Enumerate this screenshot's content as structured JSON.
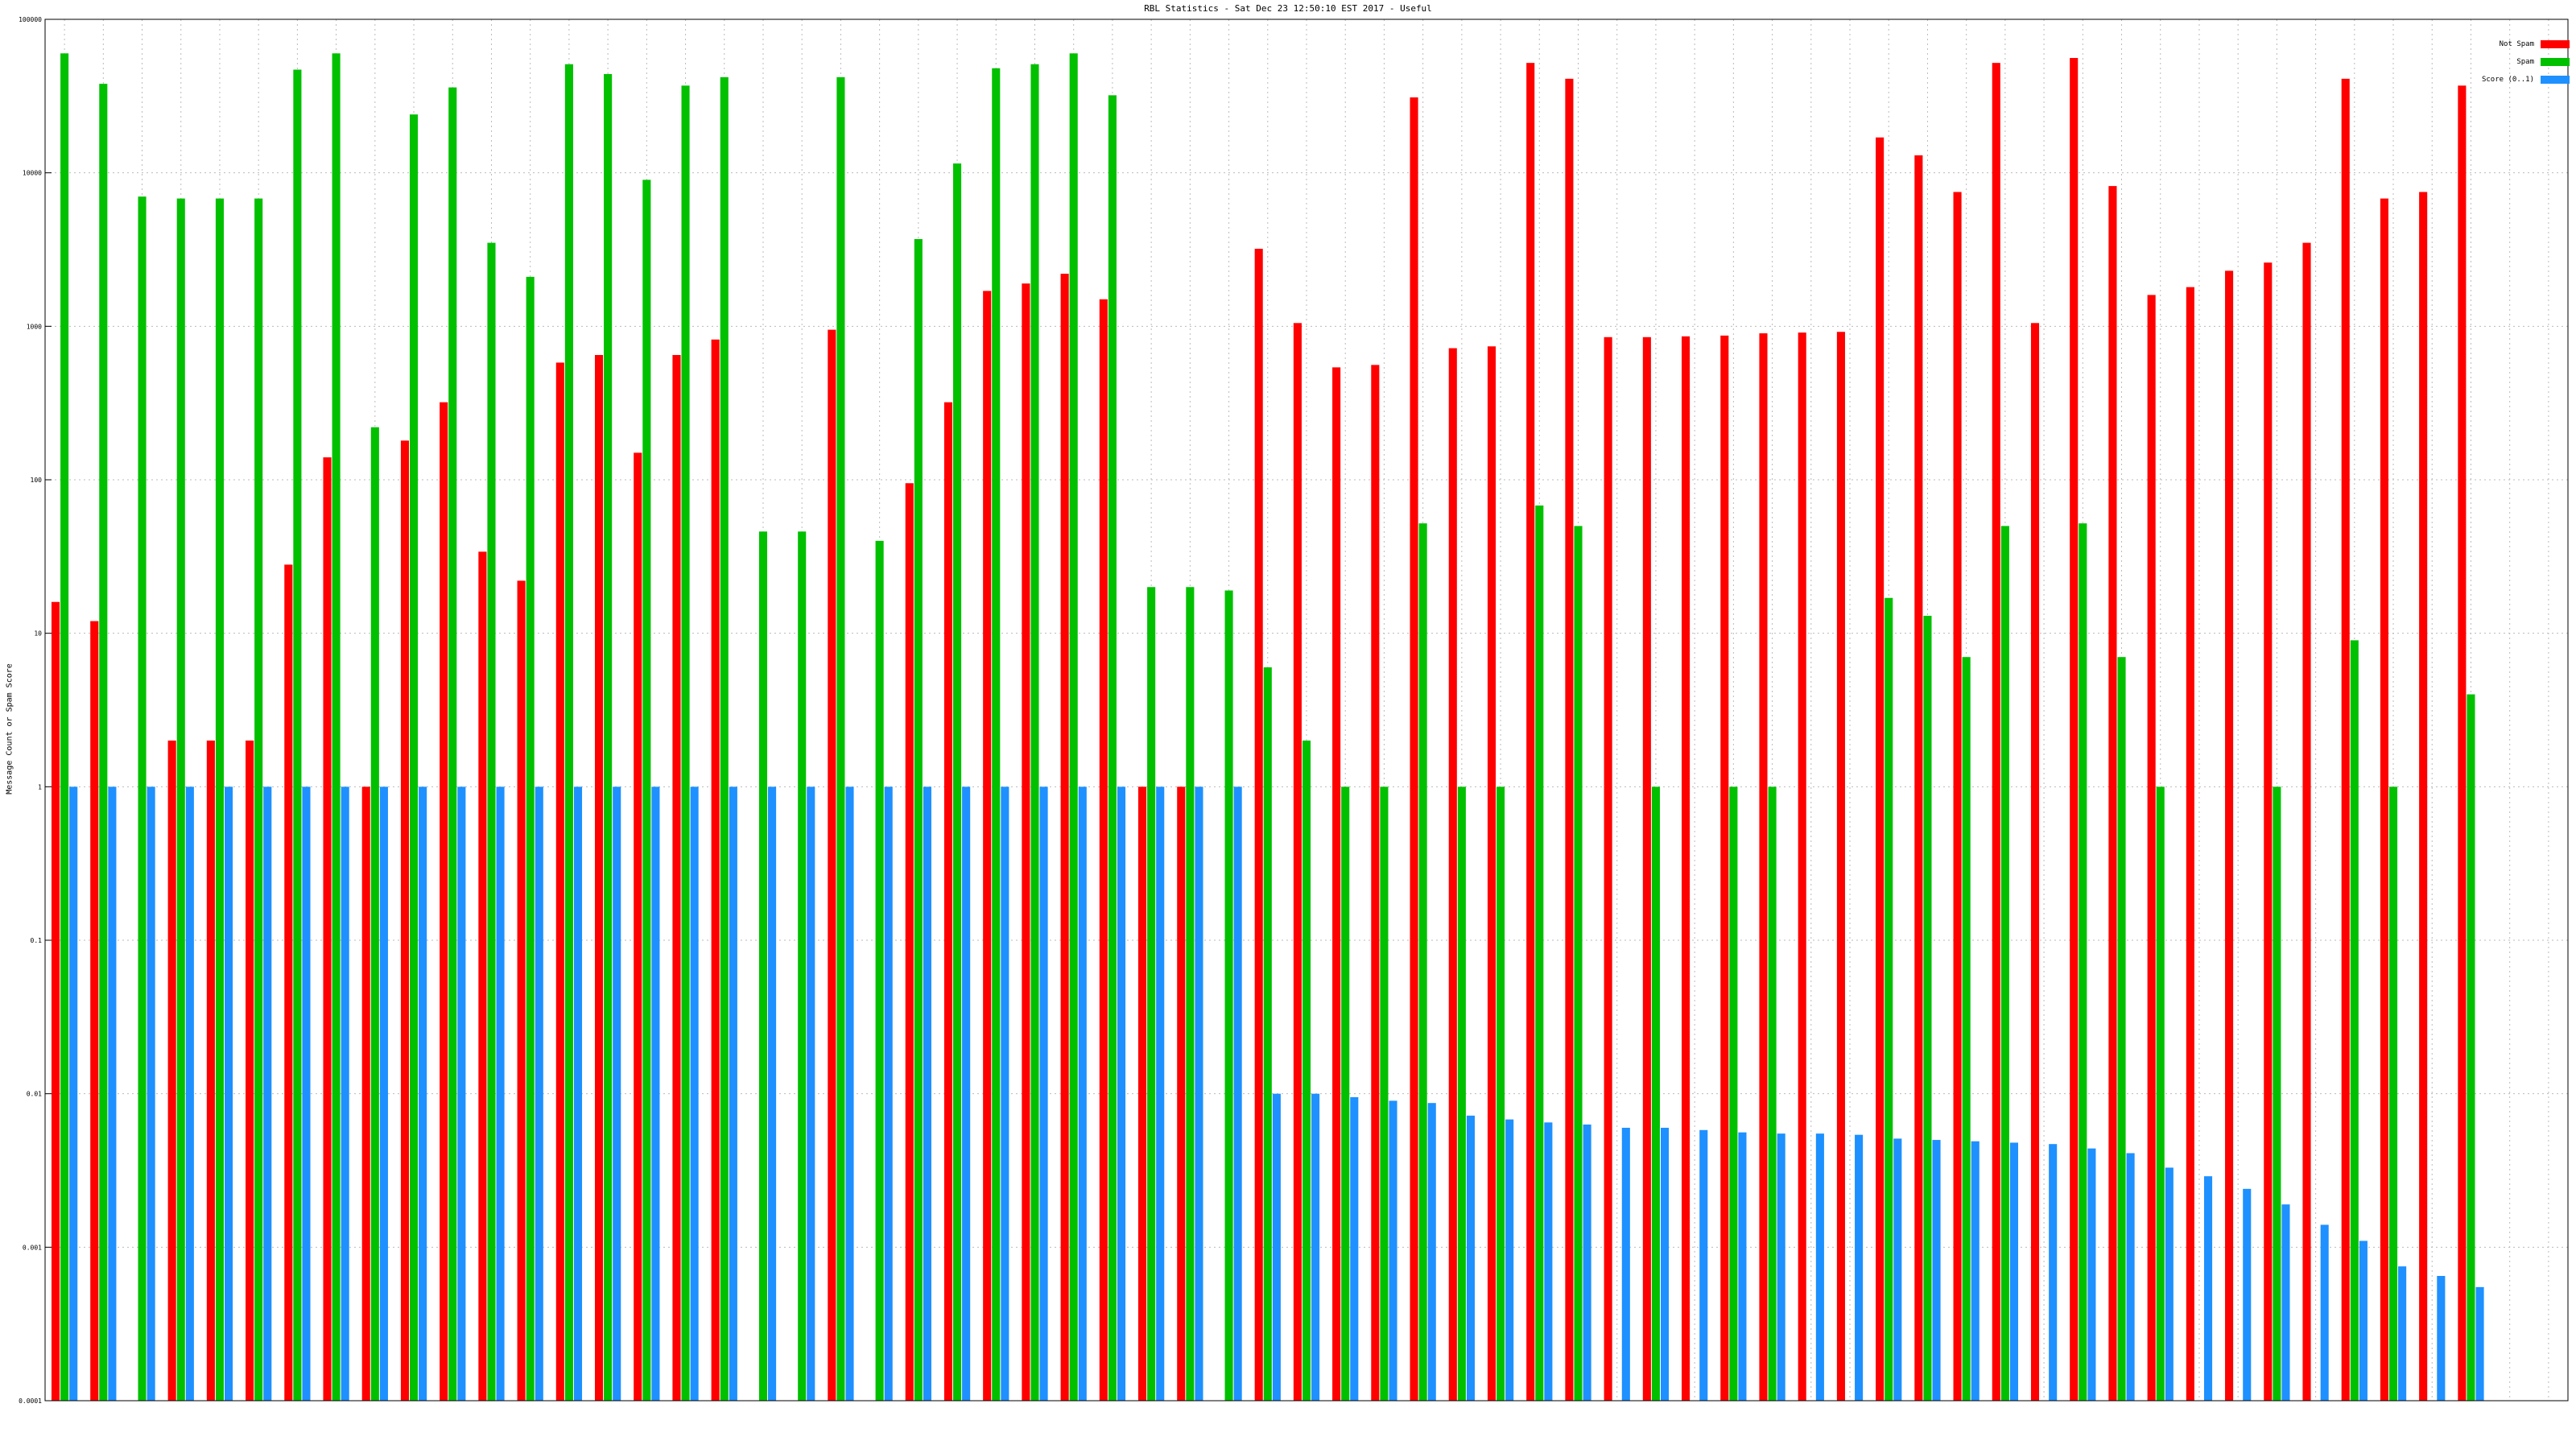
{
  "chart_data": {
    "type": "bar",
    "title": "RBL Statistics - Sat Dec 23 12:50:10 EST 2017 - Useful",
    "xlabel": "",
    "ylabel": "Message Count or Spam Score",
    "yscale": "log",
    "ylim": [
      0.0001,
      100000
    ],
    "yticks": [
      "100000",
      "10000",
      "1000",
      "100",
      "10",
      "1",
      "0.1",
      "0.01",
      "0.001",
      "0.0001"
    ],
    "grid": true,
    "legend_position": "top-right",
    "series": [
      {
        "name": "Not Spam",
        "color": "#ff0000"
      },
      {
        "name": "Spam",
        "color": "#00c000"
      },
      {
        "name": "Score (0..1)",
        "color": "#1e90ff"
      }
    ],
    "categories": [
      "",
      "",
      "",
      "",
      "",
      "",
      "",
      "",
      "",
      "",
      "",
      "",
      "",
      "",
      "",
      "",
      "",
      "",
      "",
      "",
      "",
      "",
      "",
      "",
      "",
      "",
      "",
      "",
      "",
      "",
      "",
      "",
      "",
      "",
      "",
      "",
      "",
      "",
      "",
      "",
      "",
      "",
      "",
      "",
      "",
      "",
      "",
      "",
      "",
      "",
      "",
      "",
      "",
      "",
      "",
      "",
      "",
      "",
      "",
      "",
      "",
      "",
      "",
      "",
      ""
    ],
    "values": [
      [
        16,
        12,
        0,
        2,
        2,
        2,
        28,
        140,
        1,
        180,
        320,
        34,
        22,
        580,
        650,
        150,
        650,
        820,
        0,
        0,
        950,
        0,
        95,
        320,
        1700,
        1900,
        2200,
        1500,
        1,
        1,
        0,
        3200,
        1050,
        540,
        560,
        31000,
        720,
        740,
        52000,
        41000,
        850,
        850,
        860,
        870,
        900,
        910,
        920,
        17000,
        13000,
        7500,
        52000,
        1050,
        56000,
        8200,
        1600,
        1800,
        2300,
        2600,
        3500,
        41000,
        6800,
        7500,
        37000
      ],
      [
        60000,
        38000,
        7000,
        6800,
        6800,
        6800,
        47000,
        60000,
        220,
        24000,
        36000,
        3500,
        2100,
        51000,
        44000,
        9000,
        37000,
        42000,
        46,
        46,
        42000,
        40,
        3700,
        11500,
        48000,
        51000,
        60000,
        32000,
        20,
        20,
        19,
        6,
        2,
        1,
        1,
        52,
        1,
        1,
        68,
        50,
        0,
        1,
        0,
        1,
        1,
        0,
        0,
        17,
        13,
        7,
        50,
        0,
        52,
        7,
        1,
        0,
        0,
        1,
        0,
        9,
        1,
        0,
        4
      ],
      [
        1,
        1,
        1,
        1,
        1,
        1,
        1,
        1,
        1,
        1,
        1,
        1,
        1,
        1,
        1,
        1,
        1,
        1,
        1,
        1,
        1,
        1,
        1,
        1,
        1,
        1,
        1,
        1,
        1,
        1,
        1,
        0.01,
        0.01,
        0.0095,
        0.009,
        0.0087,
        0.0072,
        0.0068,
        0.0065,
        0.0063,
        0.006,
        0.006,
        0.0058,
        0.0056,
        0.0055,
        0.0055,
        0.0054,
        0.0051,
        0.005,
        0.0049,
        0.0048,
        0.0047,
        0.0044,
        0.0041,
        0.0033,
        0.0029,
        0.0024,
        0.0019,
        0.0014,
        0.0011,
        0.00075,
        0.00065,
        0.00055
      ]
    ]
  }
}
